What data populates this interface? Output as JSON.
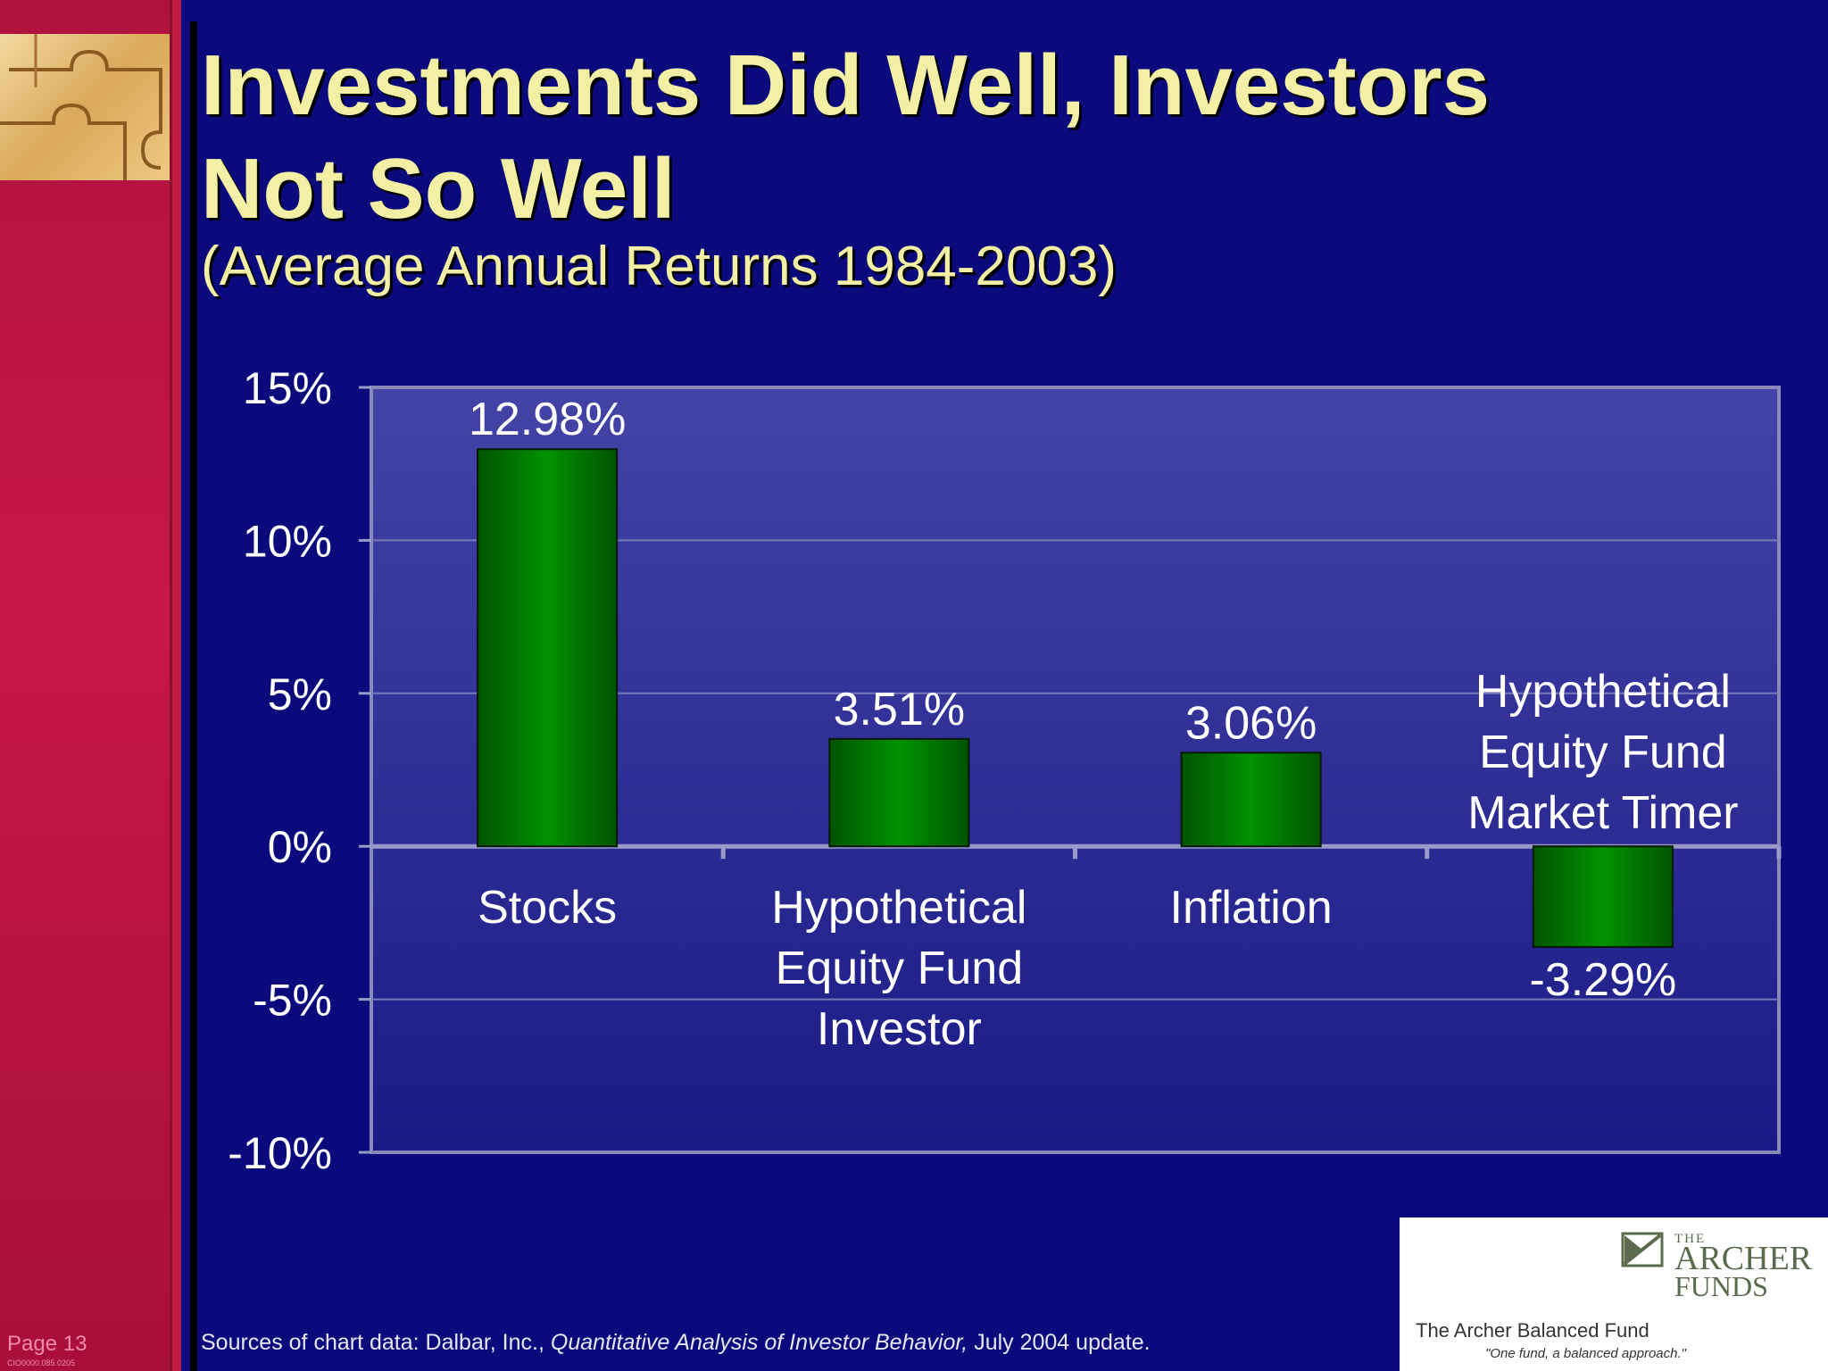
{
  "slide": {
    "title_line1": "Investments Did Well, Investors",
    "title_line2": "Not So Well",
    "subtitle": "(Average Annual Returns 1984-2003)",
    "page_label": "Page 13",
    "code_label": "CIO0000.085.0205",
    "source_prefix": "Sources of chart data: Dalbar, Inc., ",
    "source_italic": "Quantitative Analysis of Investor Behavior,",
    "source_suffix": " July 2004 update."
  },
  "logo": {
    "the": "THE",
    "archer": "ARCHER",
    "funds": "FUNDS",
    "fund_name": "The Archer Balanced Fund",
    "tagline": "\"One fund, a balanced approach.\""
  },
  "colors": {
    "background": "#0a0a7c",
    "bar": "#008a00",
    "title": "#f3f0a6",
    "sidebar": "#c8164a"
  },
  "chart_data": {
    "type": "bar",
    "categories": [
      [
        "Stocks"
      ],
      [
        "Hypothetical",
        "Equity Fund",
        "Investor"
      ],
      [
        "Inflation"
      ],
      [
        "Hypothetical",
        "Equity Fund",
        "Market Timer"
      ]
    ],
    "values": [
      12.98,
      3.51,
      3.06,
      -3.29
    ],
    "data_labels": [
      "12.98%",
      "3.51%",
      "3.06%",
      "-3.29%"
    ],
    "ylim": [
      -10,
      15
    ],
    "yticks": [
      15,
      10,
      5,
      0,
      -5,
      -10
    ],
    "ytick_labels": [
      "15%",
      "10%",
      "5%",
      "0%",
      "-5%",
      "-10%"
    ],
    "grid": true,
    "legend": "none"
  }
}
